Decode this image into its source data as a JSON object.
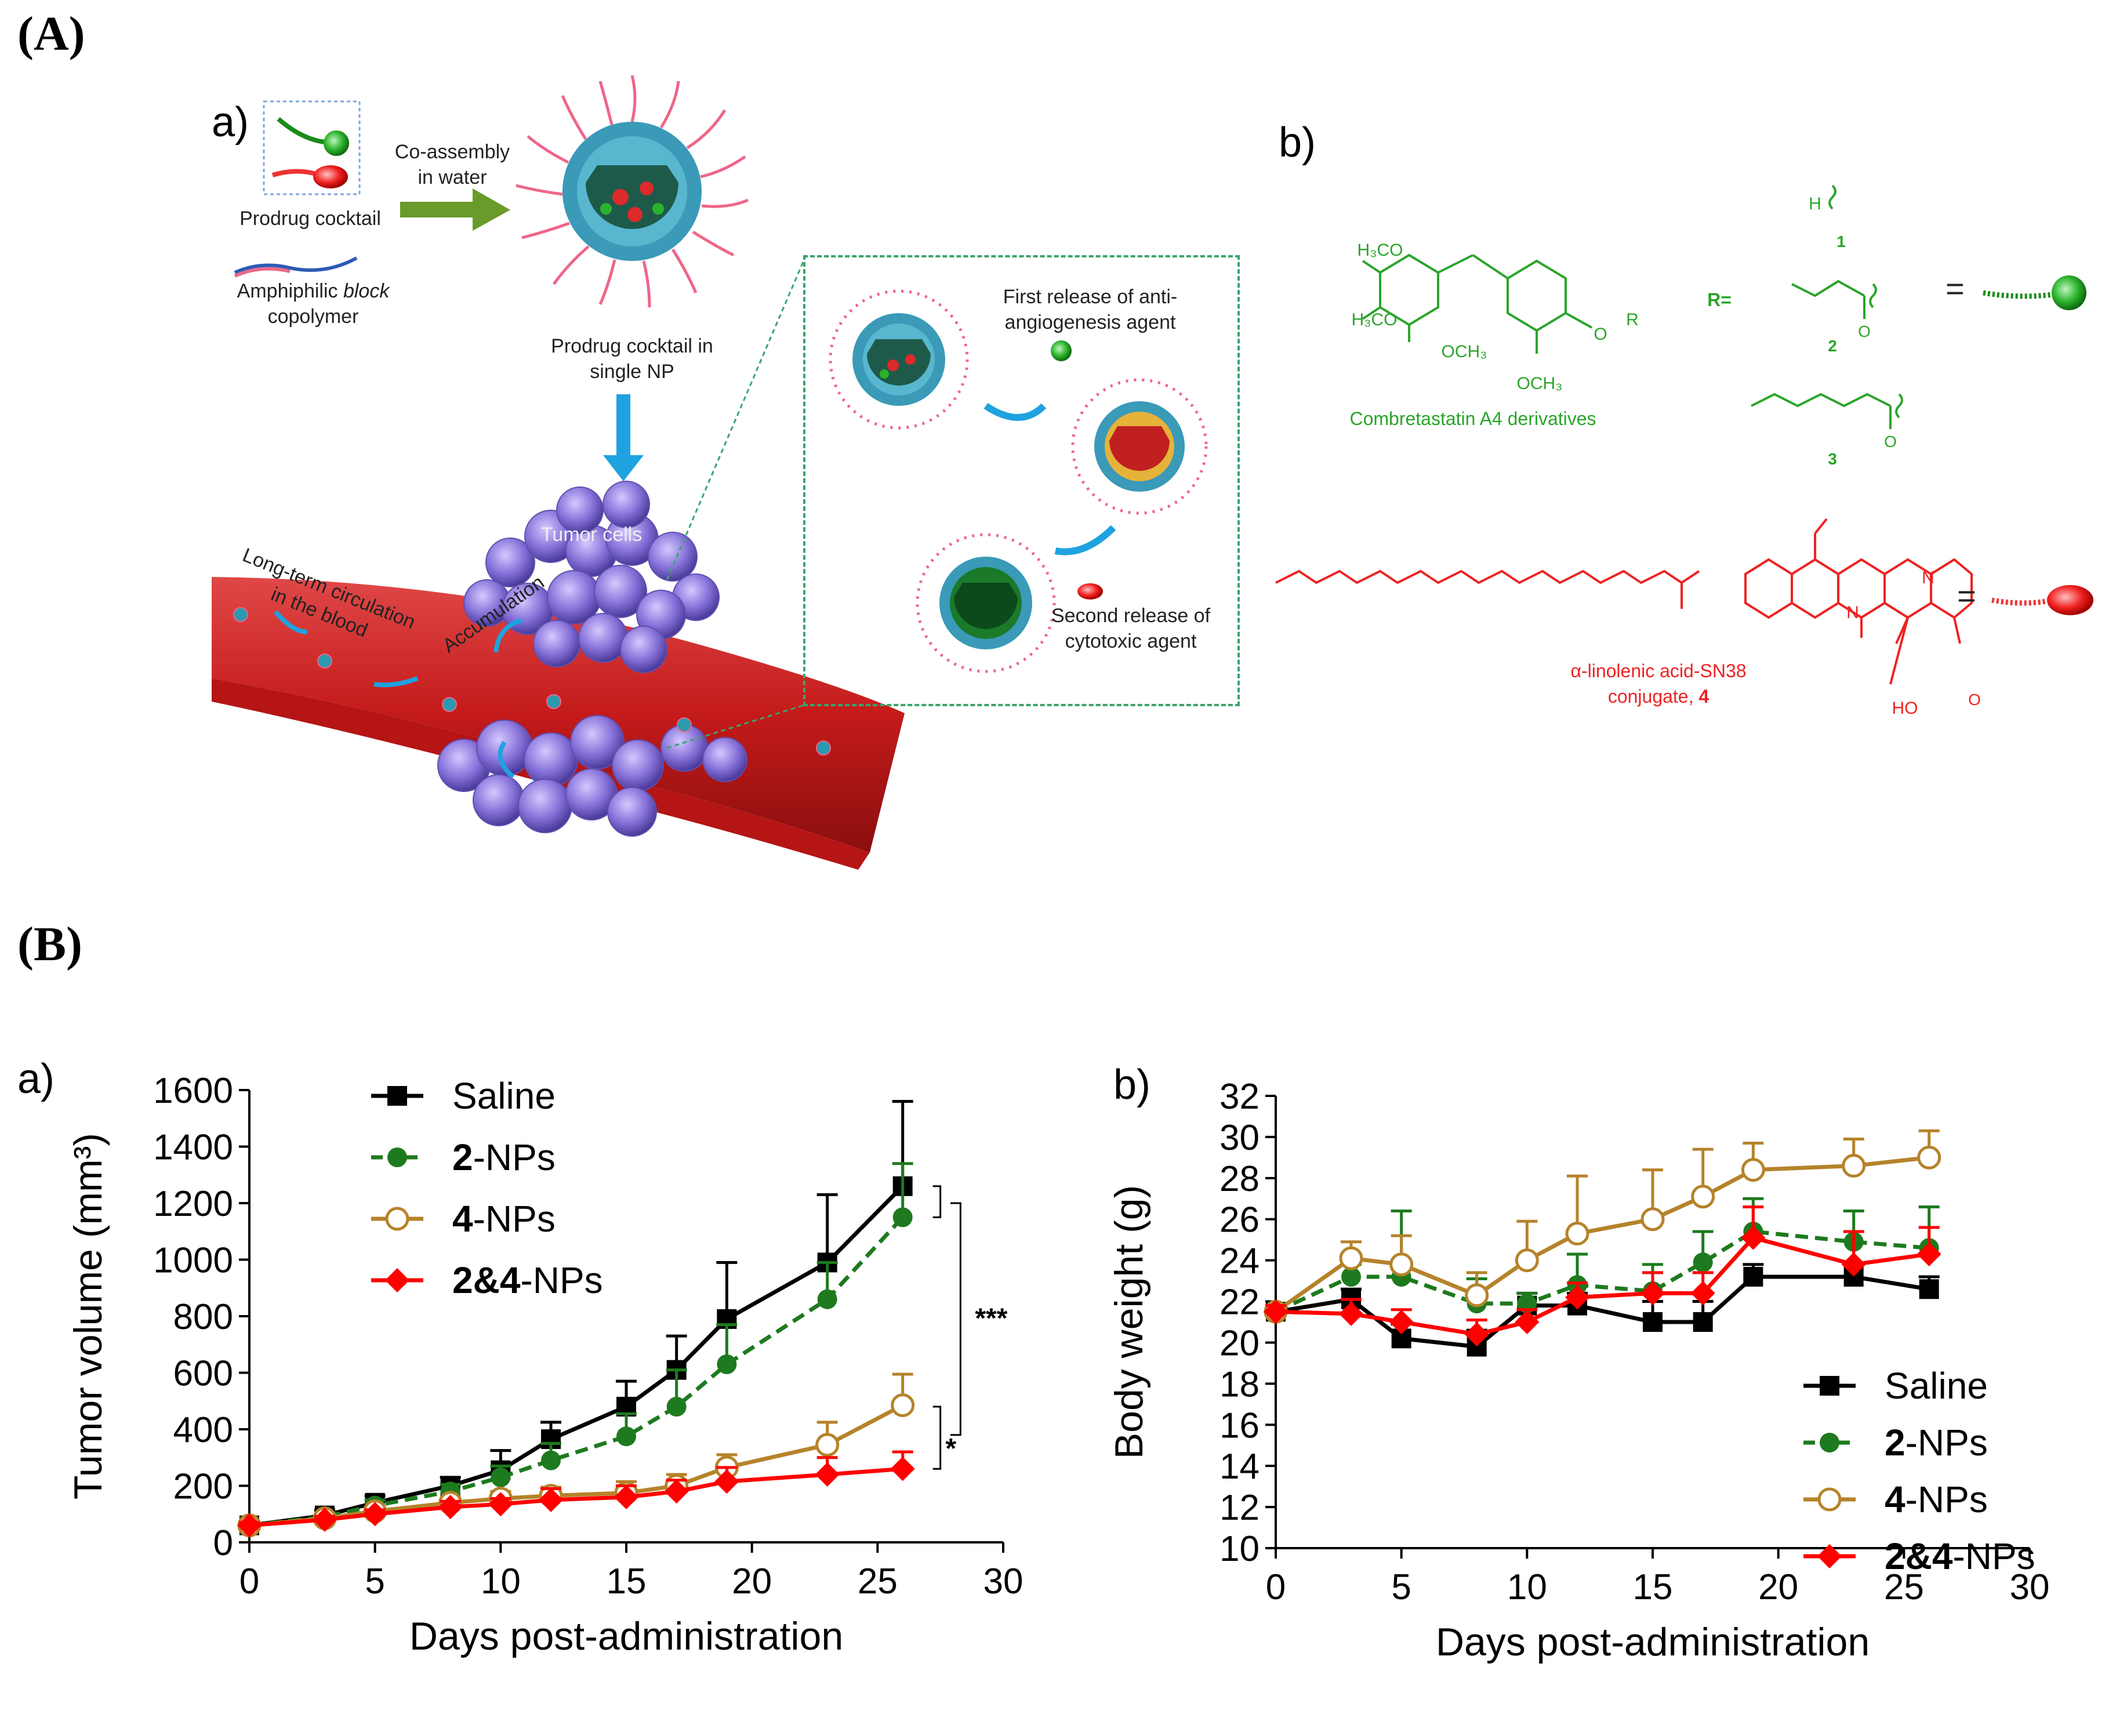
{
  "panelA": {
    "letter": "(A)",
    "subA": "a)",
    "subB": "b)",
    "coassembly": [
      "Co-assembly",
      "in water"
    ],
    "prodrugCocktail": "Prodrug cocktail",
    "amphiphilic": [
      "Amphiphilic ",
      "block",
      "copolymer"
    ],
    "singleNP": [
      "Prodrug cocktail in",
      "single NP"
    ],
    "tumorCells": "Tumor cells",
    "circulation": [
      "Long-term circulation",
      "in the blood"
    ],
    "accumulation": "Accumulation",
    "firstRelease": [
      "First release of anti-",
      "angiogenesis agent"
    ],
    "secondRelease": [
      "Second release of",
      "cytotoxic agent"
    ],
    "ca4Label": "Combretastatin A4 derivatives",
    "rEquals": "R=",
    "r1": "1",
    "r2": "2",
    "r3": "3",
    "h3co1": "H₃CO",
    "h3co2": "H₃CO",
    "och3a": "OCH₃",
    "och3b": "OCH₃",
    "o_r": "O",
    "r_sub": "R",
    "h_sub": "H",
    "ho": "HO",
    "o1": "O",
    "o2": "O",
    "o3": "O",
    "n1": "N",
    "n2": "N",
    "sn38Label": [
      "α-linolenic acid-SN38",
      "conjugate, ",
      "4"
    ],
    "equals": "="
  },
  "panelB": {
    "letter": "(B)",
    "subA": "a)",
    "subB": "b)"
  },
  "colors": {
    "saline": "#000000",
    "np2": "#1e7a1e",
    "np4": "#b5832a",
    "np24": "#ff0000"
  },
  "chart_data": [
    {
      "type": "line",
      "xlabel": "Days post-administration",
      "ylabel": "Tumor volume (mm³)",
      "xlim": [
        0,
        30
      ],
      "ylim": [
        0,
        1600
      ],
      "xticks": [
        0,
        5,
        10,
        15,
        20,
        25,
        30
      ],
      "yticks": [
        0,
        200,
        400,
        600,
        800,
        1000,
        1200,
        1400,
        1600
      ],
      "legend": "top-left",
      "annotations": [
        "***",
        "*"
      ],
      "series": [
        {
          "name": "Saline",
          "bold": "",
          "rest": "Saline",
          "x": [
            0,
            3,
            5,
            8,
            10,
            12,
            15,
            17,
            19,
            23,
            26
          ],
          "y": [
            60,
            95,
            140,
            200,
            255,
            365,
            480,
            610,
            790,
            990,
            1260
          ],
          "err": [
            15,
            20,
            25,
            30,
            70,
            60,
            90,
            120,
            200,
            240,
            300
          ]
        },
        {
          "name": "2-NPs",
          "bold": "2",
          "rest": "-NPs",
          "x": [
            0,
            3,
            5,
            8,
            10,
            12,
            15,
            17,
            19,
            23,
            26
          ],
          "y": [
            60,
            90,
            130,
            180,
            230,
            290,
            375,
            480,
            630,
            860,
            1150
          ],
          "err": [
            15,
            15,
            20,
            25,
            40,
            60,
            80,
            130,
            140,
            130,
            190
          ]
        },
        {
          "name": "4-NPs",
          "bold": "4",
          "rest": "-NPs",
          "x": [
            0,
            3,
            5,
            8,
            10,
            12,
            15,
            17,
            19,
            23,
            26
          ],
          "y": [
            60,
            85,
            110,
            140,
            155,
            165,
            175,
            200,
            265,
            345,
            485
          ],
          "err": [
            10,
            15,
            15,
            20,
            25,
            30,
            40,
            40,
            45,
            80,
            110
          ]
        },
        {
          "name": "2&4-NPs",
          "bold": "2&4",
          "rest": "-NPs",
          "x": [
            0,
            3,
            5,
            8,
            10,
            12,
            15,
            17,
            19,
            23,
            26
          ],
          "y": [
            60,
            80,
            100,
            125,
            135,
            150,
            160,
            180,
            215,
            240,
            260
          ],
          "err": [
            10,
            12,
            15,
            20,
            20,
            40,
            40,
            40,
            50,
            60,
            60
          ]
        }
      ]
    },
    {
      "type": "line",
      "xlabel": "Days post-administration",
      "ylabel": "Body weight (g)",
      "xlim": [
        0,
        30
      ],
      "ylim": [
        10,
        32
      ],
      "xticks": [
        0,
        5,
        10,
        15,
        20,
        25,
        30
      ],
      "yticks": [
        10,
        12,
        14,
        16,
        18,
        20,
        22,
        24,
        26,
        28,
        30,
        32
      ],
      "legend": "bottom-right",
      "series": [
        {
          "name": "Saline",
          "bold": "",
          "rest": "Saline",
          "x": [
            0,
            3,
            5,
            8,
            10,
            12,
            15,
            17,
            19,
            23,
            26
          ],
          "y": [
            21.5,
            22.1,
            20.2,
            19.8,
            21.8,
            21.8,
            21.0,
            21.0,
            23.2,
            23.2,
            22.6
          ],
          "err": [
            0.3,
            0.5,
            0.7,
            0.8,
            0.6,
            0.6,
            1.0,
            1.0,
            0.6,
            0.6,
            0.6
          ]
        },
        {
          "name": "2-NPs",
          "bold": "2",
          "rest": "-NPs",
          "x": [
            0,
            3,
            5,
            8,
            10,
            12,
            15,
            17,
            19,
            23,
            26
          ],
          "y": [
            21.5,
            23.2,
            23.2,
            21.9,
            21.9,
            22.8,
            22.5,
            23.9,
            25.4,
            24.9,
            24.6
          ],
          "err": [
            0.3,
            0.6,
            3.2,
            1.2,
            0.5,
            1.5,
            1.3,
            1.5,
            1.6,
            1.5,
            2.0
          ]
        },
        {
          "name": "4-NPs",
          "bold": "4",
          "rest": "-NPs",
          "x": [
            0,
            3,
            5,
            8,
            10,
            12,
            15,
            17,
            19,
            23,
            26
          ],
          "y": [
            21.5,
            24.1,
            23.8,
            22.3,
            24.0,
            25.3,
            26.0,
            27.1,
            28.4,
            28.6,
            29.0
          ],
          "err": [
            0.3,
            0.8,
            1.4,
            1.1,
            1.9,
            2.8,
            2.4,
            2.3,
            1.3,
            1.3,
            1.3
          ]
        },
        {
          "name": "2&4-NPs",
          "bold": "2&4",
          "rest": "-NPs",
          "x": [
            0,
            3,
            5,
            8,
            10,
            12,
            15,
            17,
            19,
            23,
            26
          ],
          "y": [
            21.5,
            21.4,
            21.0,
            20.4,
            21.0,
            22.2,
            22.4,
            22.4,
            25.1,
            23.8,
            24.3
          ],
          "err": [
            0.3,
            0.7,
            0.6,
            0.7,
            0.6,
            0.7,
            1.0,
            1.0,
            1.5,
            1.6,
            1.3
          ]
        }
      ]
    }
  ]
}
